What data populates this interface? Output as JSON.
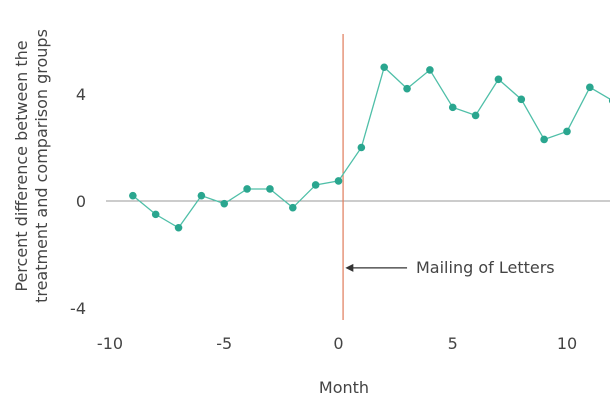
{
  "chart_data": {
    "type": "line",
    "title": "",
    "xlabel": "Month",
    "ylabel": [
      "Percent difference between the",
      "treatment and comparison groups"
    ],
    "xlim": [
      -10.5,
      12
    ],
    "ylim": [
      -4.5,
      6.5
    ],
    "xticks": [
      -10,
      -5,
      0,
      5,
      10
    ],
    "xtick_labels": [
      "-10",
      "-5",
      "0",
      "5",
      "10"
    ],
    "yticks": [
      -4,
      0,
      4
    ],
    "ytick_labels": [
      "-4",
      "0",
      "4"
    ],
    "grid": false,
    "legend": "none",
    "baseline_y": 0,
    "event_x": 0.2,
    "annotation": {
      "text": "Mailing of Letters",
      "arrow_from_x": 3,
      "arrow_to_x": 0.3,
      "y": -2.5
    },
    "series": [
      {
        "x": [
          -9,
          -8,
          -7,
          -6,
          -5,
          -4,
          -3,
          -2,
          -1,
          0,
          1,
          2,
          3,
          4,
          5,
          6,
          7,
          8,
          9,
          10,
          11,
          12
        ],
        "values": [
          0.2,
          -0.5,
          -1.0,
          0.2,
          -0.1,
          0.45,
          0.45,
          -0.25,
          0.6,
          0.75,
          2.0,
          5.0,
          4.2,
          4.9,
          3.5,
          3.2,
          4.55,
          3.8,
          2.3,
          2.6,
          4.25,
          3.75
        ]
      }
    ],
    "colors": {
      "line": "#4fbfa8",
      "marker": "#2aa68f",
      "event_line": "#e07b5a",
      "baseline": "#9a9a9a",
      "text": "#444444",
      "arrow": "#333333"
    }
  }
}
